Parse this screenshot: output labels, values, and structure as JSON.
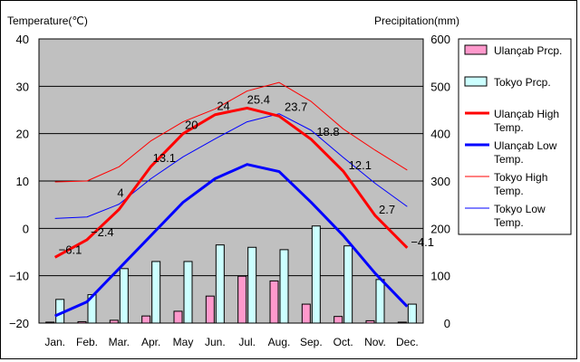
{
  "chart_data": {
    "type": "bar+line",
    "left_axis_title": "Temperature(℃)",
    "right_axis_title": "Precipitation(mm)",
    "categories": [
      "Jan.",
      "Feb.",
      "Mar.",
      "Apr.",
      "May",
      "Jun.",
      "Jul.",
      "Aug.",
      "Sep.",
      "Oct.",
      "Nov.",
      "Dec."
    ],
    "left_axis": {
      "min": -20,
      "max": 40,
      "ticks": [
        "40",
        "30",
        "20",
        "10",
        "0",
        "−10",
        "−20"
      ]
    },
    "right_axis": {
      "min": 0,
      "max": 600,
      "ticks": [
        "600",
        "500",
        "400",
        "300",
        "200",
        "100",
        "0"
      ]
    },
    "grid": true,
    "legend_position": "right",
    "bar_series": [
      {
        "name": "Ulançab Prcp.",
        "color": "#ff99cc",
        "values": [
          2,
          3,
          6,
          15,
          25,
          57,
          99,
          89,
          40,
          14,
          5,
          2
        ]
      },
      {
        "name": "Tokyo Prcp.",
        "color": "#ccffff",
        "values": [
          50,
          60,
          115,
          130,
          130,
          165,
          160,
          155,
          205,
          163,
          92,
          40
        ]
      }
    ],
    "line_series": [
      {
        "name": "Ulançab High Temp.",
        "color": "#ff0000",
        "width": 3,
        "values": [
          -6.1,
          -2.4,
          4,
          13.1,
          20,
          24,
          25.4,
          23.7,
          18.8,
          12.1,
          2.7,
          -4.1
        ]
      },
      {
        "name": "Ulançab Low Temp.",
        "color": "#0000ff",
        "width": 3,
        "values": [
          -18.5,
          -15.5,
          -8.5,
          -1.5,
          5.5,
          10.5,
          13.5,
          12,
          5.5,
          -1.5,
          -9.5,
          -16.5
        ]
      },
      {
        "name": "Tokyo High Temp.",
        "color": "#ff0000",
        "width": 1,
        "values": [
          9.8,
          10,
          13,
          18.5,
          22.5,
          25.2,
          29,
          30.8,
          26.8,
          21,
          16.5,
          12.3
        ]
      },
      {
        "name": "Tokyo Low Temp.",
        "color": "#0000ff",
        "width": 1,
        "values": [
          2.1,
          2.4,
          5.1,
          10.5,
          15.1,
          18.9,
          22.5,
          24.2,
          20.7,
          15,
          9.5,
          4.6
        ]
      }
    ],
    "data_labels": [
      "−6.1",
      "−2.4",
      "4",
      "13.1",
      "20",
      "24",
      "25.4",
      "23.7",
      "18.8",
      "12.1",
      "2.7",
      "−4.1"
    ]
  }
}
